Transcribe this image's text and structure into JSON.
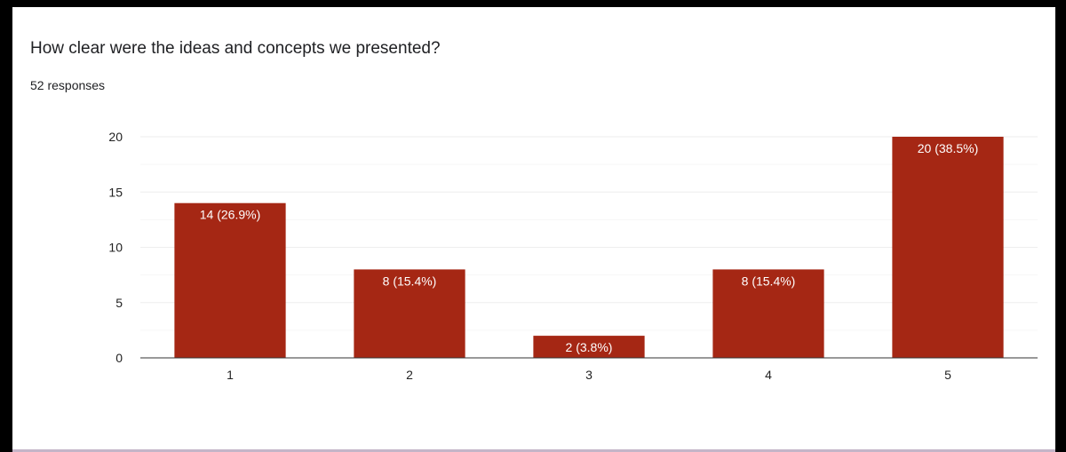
{
  "card": {
    "title": "How clear were the ideas and concepts we presented?",
    "subtitle": "52 responses"
  },
  "colors": {
    "bar": "#a52714",
    "bar_label": "#ffffff",
    "grid": "#eeeeee",
    "axis": "#333333",
    "tick_text": "#222222"
  },
  "chart_data": {
    "type": "bar",
    "title": "",
    "xlabel": "",
    "ylabel": "",
    "categories": [
      "1",
      "2",
      "3",
      "4",
      "5"
    ],
    "values": [
      14,
      8,
      2,
      8,
      20
    ],
    "data_labels": [
      "14 (26.9%)",
      "8 (15.4%)",
      "2 (3.8%)",
      "8 (15.4%)",
      "20 (38.5%)"
    ],
    "ylim": [
      0,
      20
    ],
    "yticks": [
      0,
      5,
      10,
      15,
      20
    ],
    "ytick_labels": [
      "0",
      "5",
      "10",
      "15",
      "20"
    ],
    "minor_grid_step": 2.5,
    "grid": true,
    "legend": "none"
  }
}
